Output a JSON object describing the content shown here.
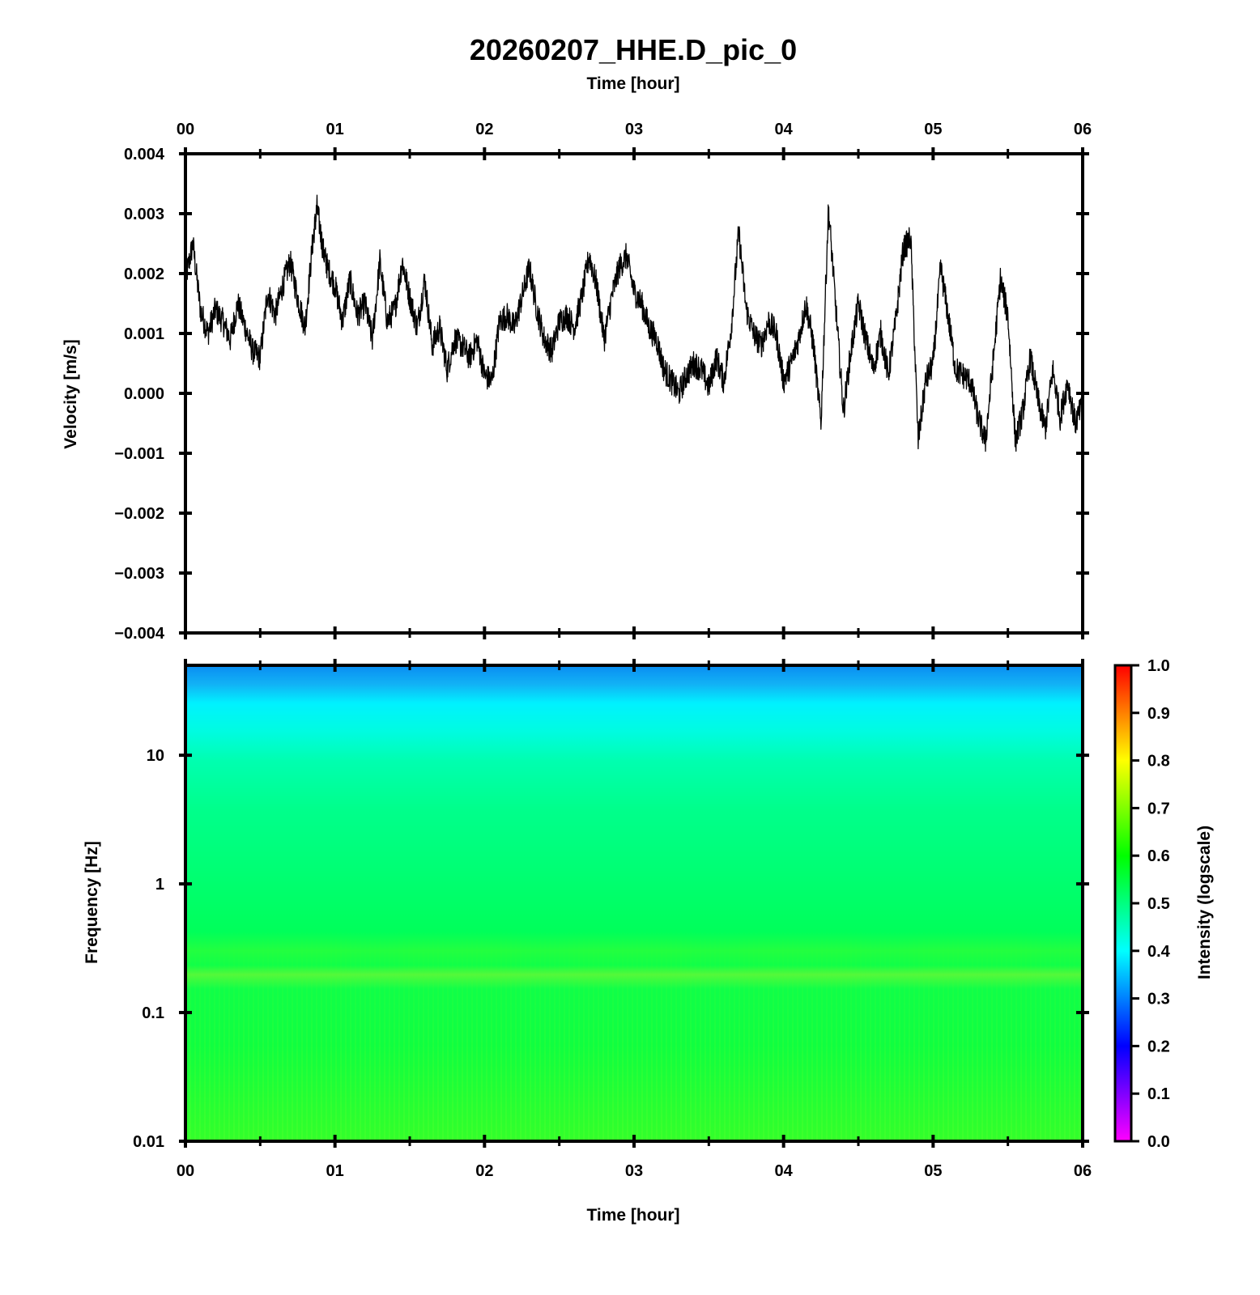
{
  "title": "20260207_HHE.D_pic_0",
  "chart_data": [
    {
      "type": "line",
      "name": "velocity-waveform",
      "xlabel": "Time [hour]",
      "ylabel": "Velocity [m/s]",
      "xlim": [
        0,
        6
      ],
      "ylim": [
        -0.004,
        0.004
      ],
      "x_ticks": [
        "00",
        "01",
        "02",
        "03",
        "04",
        "05",
        "06"
      ],
      "y_ticks": [
        "0.004",
        "0.003",
        "0.002",
        "0.001",
        "0.000",
        "−0.001",
        "−0.002",
        "−0.003",
        "−0.004"
      ],
      "y_tick_values": [
        0.004,
        0.003,
        0.002,
        0.001,
        0.0,
        -0.001,
        -0.002,
        -0.003,
        -0.004
      ],
      "series": [
        {
          "name": "HHE velocity",
          "x": [
            0.0,
            0.05,
            0.1,
            0.15,
            0.2,
            0.25,
            0.3,
            0.35,
            0.4,
            0.45,
            0.5,
            0.55,
            0.6,
            0.65,
            0.7,
            0.75,
            0.8,
            0.85,
            0.88,
            0.92,
            0.95,
            1.0,
            1.05,
            1.1,
            1.15,
            1.2,
            1.25,
            1.3,
            1.35,
            1.4,
            1.45,
            1.5,
            1.55,
            1.6,
            1.65,
            1.7,
            1.75,
            1.8,
            1.85,
            1.9,
            1.95,
            2.0,
            2.05,
            2.1,
            2.15,
            2.2,
            2.25,
            2.3,
            2.35,
            2.4,
            2.45,
            2.5,
            2.55,
            2.6,
            2.65,
            2.7,
            2.75,
            2.8,
            2.85,
            2.9,
            2.95,
            3.0,
            3.05,
            3.1,
            3.15,
            3.2,
            3.25,
            3.3,
            3.35,
            3.4,
            3.45,
            3.5,
            3.55,
            3.6,
            3.65,
            3.7,
            3.75,
            3.8,
            3.85,
            3.9,
            3.95,
            4.0,
            4.05,
            4.1,
            4.15,
            4.2,
            4.25,
            4.3,
            4.35,
            4.4,
            4.45,
            4.5,
            4.55,
            4.6,
            4.65,
            4.7,
            4.75,
            4.8,
            4.85,
            4.9,
            4.95,
            5.0,
            5.05,
            5.1,
            5.15,
            5.2,
            5.25,
            5.3,
            5.35,
            5.4,
            5.45,
            5.5,
            5.55,
            5.6,
            5.65,
            5.7,
            5.75,
            5.8,
            5.85,
            5.9,
            5.95,
            6.0
          ],
          "values": [
            0.0019,
            0.0025,
            0.0014,
            0.001,
            0.0014,
            0.0012,
            0.0009,
            0.0015,
            0.0011,
            0.0007,
            0.0006,
            0.0017,
            0.0013,
            0.0018,
            0.0022,
            0.0016,
            0.0011,
            0.0025,
            0.0031,
            0.0024,
            0.0021,
            0.0018,
            0.0012,
            0.0019,
            0.0013,
            0.0015,
            0.0009,
            0.0022,
            0.0012,
            0.0014,
            0.0022,
            0.0016,
            0.0011,
            0.0019,
            0.0008,
            0.0011,
            0.0004,
            0.0009,
            0.0008,
            0.0006,
            0.0009,
            0.0003,
            0.0002,
            0.0012,
            0.0013,
            0.0011,
            0.0016,
            0.0021,
            0.0014,
            0.0009,
            0.0007,
            0.0012,
            0.0013,
            0.0011,
            0.0016,
            0.0023,
            0.0018,
            0.0009,
            0.0016,
            0.0021,
            0.0023,
            0.0017,
            0.0015,
            0.0011,
            0.0009,
            0.0004,
            0.0002,
            0.0,
            0.0003,
            0.0005,
            0.0004,
            0.0001,
            0.0006,
            0.0002,
            0.0011,
            0.0027,
            0.0014,
            0.001,
            0.0008,
            0.0012,
            0.001,
            0.0002,
            0.0005,
            0.0009,
            0.0015,
            0.0008,
            -0.0005,
            0.0031,
            0.0014,
            -0.0003,
            0.0007,
            0.0015,
            0.0009,
            0.0004,
            0.001,
            0.0003,
            0.0012,
            0.0024,
            0.0026,
            -0.0008,
            0.0002,
            0.0005,
            0.0021,
            0.0013,
            0.0004,
            0.0003,
            0.0002,
            -0.0004,
            -0.0008,
            0.0005,
            0.0019,
            0.0013,
            -0.0008,
            -0.0003,
            0.0006,
            -0.0001,
            -0.0006,
            0.0004,
            -0.0004,
            0.0002,
            -0.0005,
            -0.0002
          ]
        }
      ]
    },
    {
      "type": "heatmap",
      "name": "spectrogram",
      "xlabel": "Time [hour]",
      "ylabel": "Frequency [Hz]",
      "xlim": [
        0,
        6
      ],
      "y_scale": "log",
      "ylim": [
        0.01,
        50
      ],
      "x_ticks": [
        "00",
        "01",
        "02",
        "03",
        "04",
        "05",
        "06"
      ],
      "y_ticks": [
        "10",
        "1",
        "0.1",
        "0.01"
      ],
      "y_tick_values": [
        10,
        1,
        0.1,
        0.01
      ],
      "colorbar": {
        "label": "Intensity (logscale)",
        "range": [
          0.0,
          1.0
        ],
        "ticks": [
          "1.0",
          "0.9",
          "0.8",
          "0.7",
          "0.6",
          "0.5",
          "0.4",
          "0.3",
          "0.2",
          "0.1",
          "0.0"
        ],
        "tick_values": [
          1.0,
          0.9,
          0.8,
          0.7,
          0.6,
          0.5,
          0.4,
          0.3,
          0.2,
          0.1,
          0.0
        ],
        "colormap_stops": [
          "#ff00ff",
          "#8000ff",
          "#0000ff",
          "#0080ff",
          "#00ffff",
          "#00ff80",
          "#00ff00",
          "#80ff00",
          "#ffff00",
          "#ff8000",
          "#ff0000"
        ]
      },
      "frequency_profile": {
        "frequencies": [
          50,
          30,
          20,
          10,
          1,
          0.4,
          0.2,
          0.1,
          0.01
        ],
        "intensities": [
          0.32,
          0.38,
          0.42,
          0.48,
          0.53,
          0.56,
          0.6,
          0.57,
          0.6
        ]
      }
    }
  ]
}
